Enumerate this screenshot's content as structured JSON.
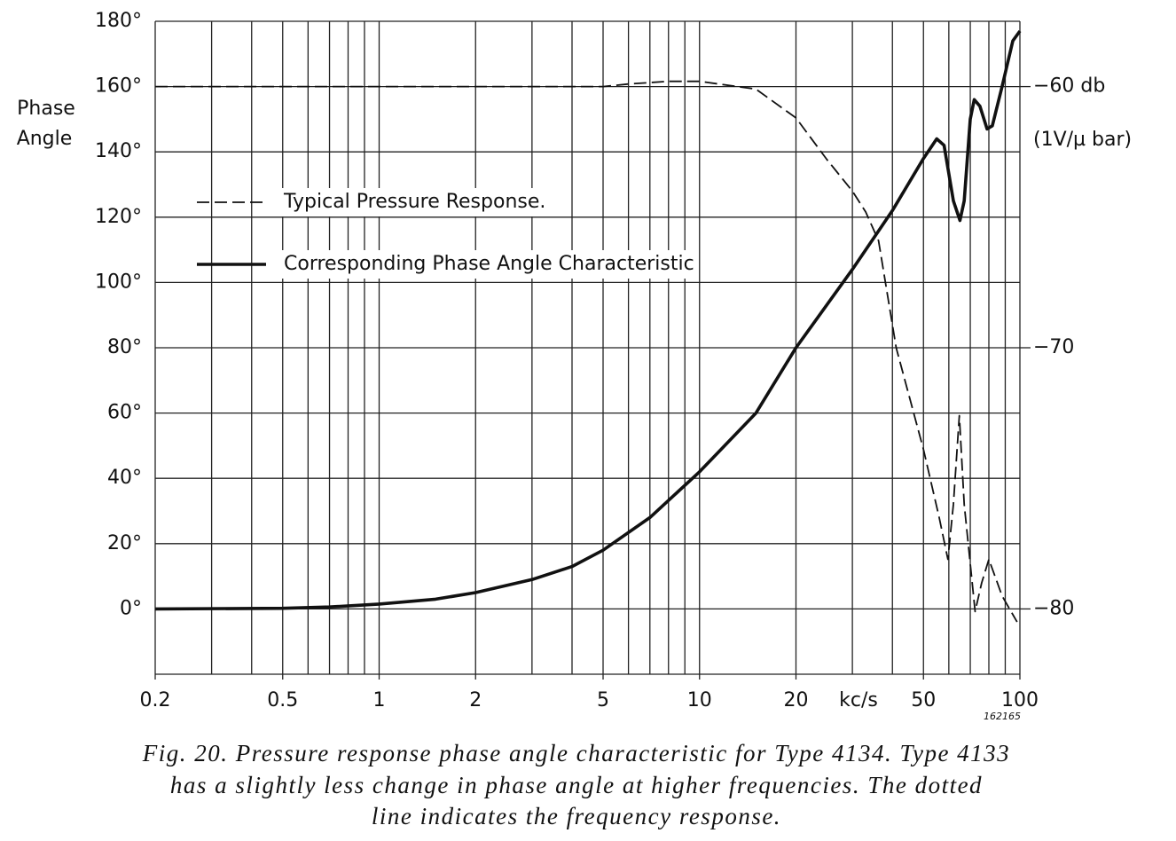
{
  "chart_data": {
    "type": "line",
    "ylabel": [
      "Phase",
      "Angle"
    ],
    "y2label": "(1V/µ bar)",
    "xlabel": "kc/s",
    "code": "162165",
    "caption": [
      "Fig. 20. Pressure response phase angle characteristic for Type 4134. Type 4133",
      "has a slightly less change in phase angle at higher frequencies. The dotted",
      "line indicates the frequency response."
    ],
    "log_x": true,
    "xlim": [
      0.2,
      100
    ],
    "xticks": [
      0.2,
      0.5,
      1,
      2,
      5,
      10,
      20,
      50,
      100
    ],
    "xgrid": [
      0.2,
      0.3,
      0.4,
      0.5,
      0.6,
      0.7,
      0.8,
      0.9,
      1,
      2,
      3,
      4,
      5,
      6,
      7,
      8,
      9,
      10,
      20,
      30,
      40,
      50,
      60,
      70,
      80,
      90,
      100
    ],
    "ylim": [
      -20,
      180
    ],
    "yticks": [
      {
        "value": 0,
        "label": "0°"
      },
      {
        "value": 20,
        "label": "20°"
      },
      {
        "value": 40,
        "label": "40°"
      },
      {
        "value": 60,
        "label": "60°"
      },
      {
        "value": 80,
        "label": "80°"
      },
      {
        "value": 100,
        "label": "100°"
      },
      {
        "value": 120,
        "label": "120°"
      },
      {
        "value": 140,
        "label": "140°"
      },
      {
        "value": 160,
        "label": "160°"
      },
      {
        "value": 180,
        "label": "180°"
      }
    ],
    "y2lim": [
      -82.5,
      -57.5
    ],
    "y2ticks": [
      {
        "value": -60,
        "label": "−60 db"
      },
      {
        "value": -70,
        "label": "−70"
      },
      {
        "value": -80,
        "label": "−80"
      }
    ],
    "grid": true,
    "series": [
      {
        "name": "Typical Pressure Response.",
        "color": "#111",
        "dash": true,
        "axis": "y2",
        "x": [
          0.2,
          1,
          5,
          6,
          8,
          10,
          15,
          20,
          25,
          30,
          33,
          36.2,
          41.1,
          50,
          56,
          59.6,
          62,
          64.7,
          67,
          72.5,
          76,
          80,
          88,
          98
        ],
        "values": [
          -60,
          -60,
          -60,
          -59.9,
          -59.8,
          -59.8,
          -60.1,
          -61.2,
          -62.8,
          -64.0,
          -64.8,
          -65.9,
          -70,
          -73.9,
          -76.5,
          -78.1,
          -76,
          -72.6,
          -76,
          -80.1,
          -79,
          -78.1,
          -79.5,
          -80.5
        ]
      },
      {
        "name": "Corresponding Phase Angle Characteristic",
        "color": "#111",
        "dash": false,
        "axis": "y",
        "x": [
          0.2,
          0.5,
          0.7,
          1,
          1.5,
          2,
          3,
          4,
          5,
          7,
          10,
          15,
          20,
          30,
          40,
          50,
          55,
          58,
          62,
          65,
          67,
          70,
          72,
          75,
          79,
          82,
          88,
          95,
          100
        ],
        "values": [
          0,
          0.2,
          0.6,
          1.5,
          3,
          5,
          9,
          13,
          18,
          28,
          42,
          60,
          80,
          104,
          122,
          138,
          144,
          142,
          125,
          119,
          125,
          150,
          156,
          154,
          147,
          148,
          160,
          174,
          177
        ]
      }
    ]
  }
}
